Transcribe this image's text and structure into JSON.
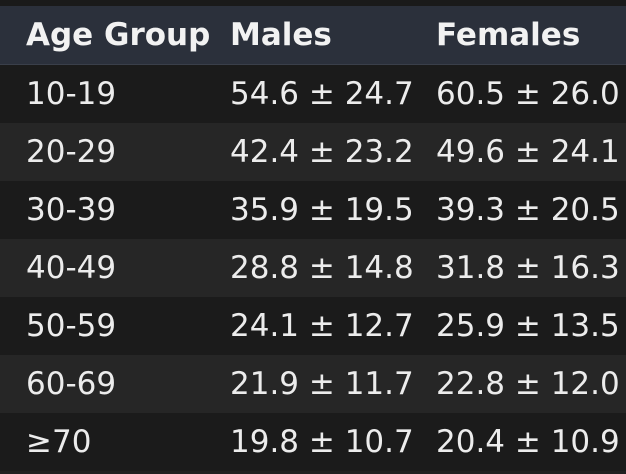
{
  "table": {
    "headers": {
      "age_group": "Age Group",
      "males": "Males",
      "females": "Females"
    },
    "rows": [
      {
        "age": "10-19",
        "males": "54.6 ± 24.7",
        "females": "60.5 ± 26.0"
      },
      {
        "age": "20-29",
        "males": "42.4 ± 23.2",
        "females": "49.6 ± 24.1"
      },
      {
        "age": "30-39",
        "males": "35.9 ± 19.5",
        "females": "39.3 ± 20.5"
      },
      {
        "age": "40-49",
        "males": "28.8 ± 14.8",
        "females": "31.8 ± 16.3"
      },
      {
        "age": "50-59",
        "males": "24.1 ± 12.7",
        "females": "25.9 ± 13.5"
      },
      {
        "age": "60-69",
        "males": "21.9 ± 11.7",
        "females": "22.8 ± 12.0"
      },
      {
        "age": "≥70",
        "males": "19.8 ± 10.7",
        "females": "20.4 ± 10.9"
      }
    ]
  }
}
